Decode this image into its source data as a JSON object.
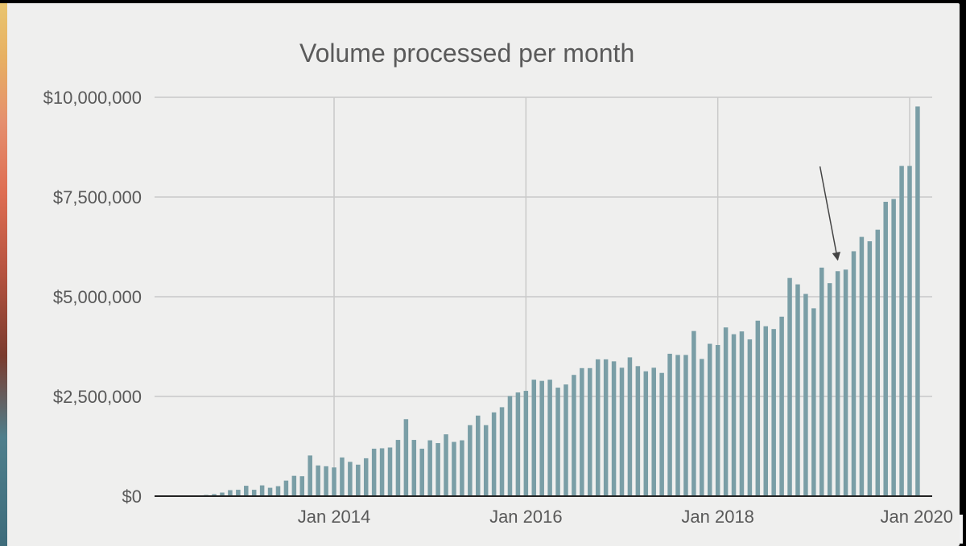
{
  "chart_data": {
    "type": "bar",
    "title": "Volume processed per month",
    "xlabel": "",
    "ylabel": "",
    "x_tick_labels": [
      "Jan 2014",
      "Jan 2016",
      "Jan 2018",
      "Jan 2020"
    ],
    "y_tick_labels": [
      "$0",
      "$2,500,000",
      "$5,000,000",
      "$7,500,000",
      "$10,000,000"
    ],
    "ylim": [
      0,
      10000000
    ],
    "grid": true,
    "bar_color": "#7a9ea6",
    "start_month": "2012-06",
    "values": [
      5000,
      10000,
      20000,
      30000,
      50000,
      90000,
      150000,
      160000,
      260000,
      160000,
      270000,
      210000,
      250000,
      390000,
      510000,
      500000,
      1020000,
      770000,
      750000,
      720000,
      970000,
      860000,
      790000,
      950000,
      1190000,
      1200000,
      1220000,
      1410000,
      1930000,
      1410000,
      1190000,
      1400000,
      1330000,
      1550000,
      1360000,
      1400000,
      1780000,
      2020000,
      1780000,
      2100000,
      2230000,
      2510000,
      2600000,
      2640000,
      2920000,
      2890000,
      2920000,
      2720000,
      2800000,
      3040000,
      3210000,
      3210000,
      3430000,
      3430000,
      3380000,
      3220000,
      3480000,
      3260000,
      3130000,
      3220000,
      3090000,
      3570000,
      3540000,
      3540000,
      4140000,
      3440000,
      3820000,
      3790000,
      4230000,
      4060000,
      4130000,
      3930000,
      4400000,
      4260000,
      4190000,
      4500000,
      5470000,
      5310000,
      5070000,
      4710000,
      5730000,
      5340000,
      5640000,
      5680000,
      6140000,
      6500000,
      6390000,
      6680000,
      7380000,
      7450000,
      8280000,
      8280000,
      9770000
    ],
    "annotation": {
      "type": "arrow",
      "points_to_month": "2019-04"
    }
  }
}
